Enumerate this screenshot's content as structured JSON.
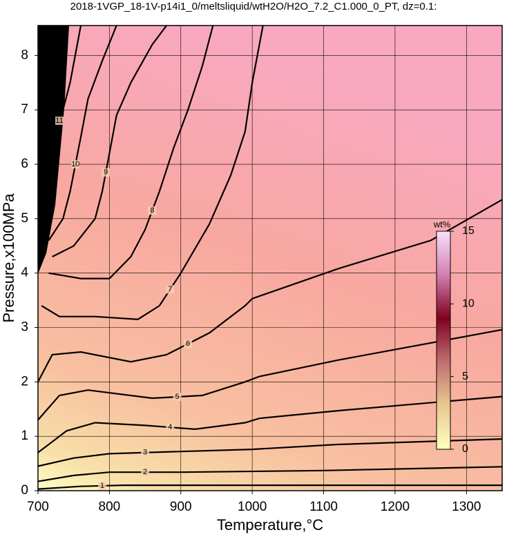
{
  "chart_data": {
    "type": "contour",
    "title": "2018-1VGP_18-1V-p14i1_0/meltsliquid/wtH2O/H2O_7.2_C1.000_0_PT, dz=0.1:",
    "xlabel": "Temperature,°C",
    "ylabel": "Pressure,x100MPa",
    "xlim": [
      700,
      1350
    ],
    "ylim": [
      0,
      8.55
    ],
    "xticks": [
      700,
      800,
      900,
      1000,
      1100,
      1200,
      1300
    ],
    "yticks": [
      0,
      1,
      2,
      3,
      4,
      5,
      6,
      7,
      8
    ],
    "grid": true,
    "colorbar": {
      "label": "wt%",
      "lim": [
        0,
        15
      ],
      "ticks": [
        0,
        5,
        10,
        15
      ],
      "colors": [
        "#ffffc0",
        "#e8c890",
        "#c07070",
        "#800020",
        "#d080b0",
        "#f8e0f8"
      ]
    },
    "contours": [
      {
        "level": 1,
        "x": [
          700,
          760,
          820,
          1350
        ],
        "y": [
          0.03,
          0.08,
          0.1,
          0.1
        ]
      },
      {
        "level": 2,
        "x": [
          700,
          750,
          800,
          900,
          1100,
          1350
        ],
        "y": [
          0.17,
          0.28,
          0.34,
          0.34,
          0.37,
          0.44
        ]
      },
      {
        "level": 3,
        "x": [
          700,
          750,
          800,
          900,
          1000,
          1120,
          1350
        ],
        "y": [
          0.45,
          0.6,
          0.68,
          0.72,
          0.76,
          0.85,
          0.95
        ]
      },
      {
        "level": 4,
        "x": [
          700,
          740,
          780,
          850,
          920,
          990,
          1010,
          1120,
          1350
        ],
        "y": [
          0.7,
          1.1,
          1.25,
          1.2,
          1.13,
          1.25,
          1.33,
          1.47,
          1.73
        ]
      },
      {
        "level": 5,
        "x": [
          700,
          730,
          770,
          860,
          930,
          990,
          1010,
          1120,
          1350
        ],
        "y": [
          1.3,
          1.75,
          1.85,
          1.7,
          1.75,
          2.0,
          2.1,
          2.4,
          2.96
        ]
      },
      {
        "level": 6,
        "x": [
          700,
          720,
          760,
          830,
          880,
          940,
          990,
          1000,
          1120,
          1250,
          1350
        ],
        "y": [
          2.0,
          2.5,
          2.55,
          2.37,
          2.5,
          2.9,
          3.4,
          3.53,
          4.08,
          4.6,
          5.35
        ]
      },
      {
        "level": 7,
        "x": [
          705,
          730,
          780,
          840,
          870,
          900,
          940,
          970,
          990,
          1000,
          1015
        ],
        "y": [
          3.4,
          3.2,
          3.2,
          3.15,
          3.4,
          4.0,
          4.9,
          5.8,
          6.6,
          7.5,
          8.55
        ]
      },
      {
        "level": 8,
        "x": [
          715,
          760,
          800,
          830,
          850,
          870,
          890,
          910,
          930,
          945
        ],
        "y": [
          4.0,
          3.9,
          3.9,
          4.3,
          4.8,
          5.5,
          6.3,
          7.0,
          7.8,
          8.55
        ]
      },
      {
        "level": 9,
        "x": [
          720,
          750,
          780,
          790,
          800,
          810,
          830,
          860,
          880
        ],
        "y": [
          4.3,
          4.5,
          5.0,
          5.5,
          6.2,
          6.9,
          7.5,
          8.2,
          8.55
        ]
      },
      {
        "level": 10,
        "x": [
          715,
          735,
          745,
          760,
          770,
          790,
          810
        ],
        "y": [
          4.6,
          5.0,
          5.5,
          6.5,
          7.2,
          7.9,
          8.55
        ]
      },
      {
        "level": 11,
        "x": [
          710,
          725,
          735,
          745,
          760
        ],
        "y": [
          6.0,
          6.6,
          7.0,
          7.5,
          8.55
        ]
      }
    ]
  }
}
